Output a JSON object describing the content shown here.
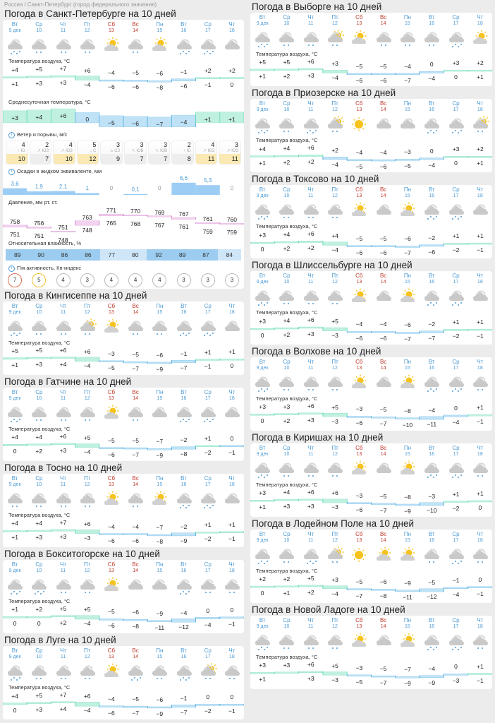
{
  "breadcrumb": "Россия / Санкт-Петербург (город федерального значения)",
  "colors": {
    "warm_fill": "#bff0e0",
    "warm_line": "#5cd6b0",
    "cold_fill": "#bfe2f7",
    "cold_line": "#4aa8dd",
    "pressure_fill": "#f3d3f0",
    "pressure_line": "#c77ac0",
    "precip": "#9ccdf5",
    "humidity_dark": "#9ccdf0",
    "humidity_light": "#cfe6f8",
    "day_blue": "#4d9bd4",
    "weekend_red": "#c0392b"
  },
  "days": [
    {
      "name": "Вт",
      "date": "9 дек",
      "weekend": false
    },
    {
      "name": "Ср",
      "date": "10",
      "weekend": false
    },
    {
      "name": "Чт",
      "date": "11",
      "weekend": false
    },
    {
      "name": "Пт",
      "date": "12",
      "weekend": false
    },
    {
      "name": "Сб",
      "date": "13",
      "weekend": true
    },
    {
      "name": "Вс",
      "date": "14",
      "weekend": true
    },
    {
      "name": "Пн",
      "date": "15",
      "weekend": false
    },
    {
      "name": "Вт",
      "date": "16",
      "weekend": false
    },
    {
      "name": "Ср",
      "date": "17",
      "weekend": false
    },
    {
      "name": "Чт",
      "date": "18",
      "weekend": false
    }
  ],
  "labels": {
    "air_temp": "Температура воздуха, °C",
    "avg_temp": "Среднесуточная температура, °C",
    "wind": "Ветер и порывы, м/с",
    "precip": "Осадки в жидком эквиваленте, мм",
    "pressure": "Давление, мм рт. ст.",
    "humidity": "Относительная влажность, %",
    "geomag": "Г/м активность, Кп-индекс",
    "info_icon": "i"
  },
  "main": {
    "title": "Погода в Санкт-Петербурге на 10 дней",
    "icons": [
      "cloud-rain-heavy",
      "cloud-rain",
      "cloud-rain",
      "cloud-rain",
      "sun-cloud",
      "cloud-rain",
      "sun-cloud",
      "cloud-rain-heavy",
      "cloud-rain-heavy",
      "cloud"
    ],
    "max": [
      "+4",
      "+5",
      "+7",
      "+6",
      "−4",
      "−5",
      "−6",
      "−1",
      "+2",
      "+2"
    ],
    "min": [
      "+1",
      "+3",
      "+3",
      "−4",
      "−6",
      "−6",
      "−8",
      "−6",
      "−1",
      "0"
    ],
    "avg": [
      "+3",
      "+4",
      "+6",
      "0",
      "−5",
      "−6",
      "−7",
      "−4",
      "+1",
      "+1"
    ],
    "wind": [
      {
        "speed": "4",
        "dir": "↑ Ю",
        "gust": "10",
        "hi": true
      },
      {
        "speed": "2",
        "dir": "↗ ЮЗ",
        "gust": "7",
        "hi": false
      },
      {
        "speed": "4",
        "dir": "↗ ЮЗ",
        "gust": "10",
        "hi": true
      },
      {
        "speed": "5",
        "dir": "↓ С",
        "gust": "12",
        "hi": true
      },
      {
        "speed": "3",
        "dir": "↘ СЗ",
        "gust": "9",
        "hi": false
      },
      {
        "speed": "3",
        "dir": "↖ ЮВ",
        "gust": "7",
        "hi": false
      },
      {
        "speed": "3",
        "dir": "↖ ЮВ",
        "gust": "7",
        "hi": false
      },
      {
        "speed": "2",
        "dir": "↑ Ю",
        "gust": "8",
        "hi": false
      },
      {
        "speed": "4",
        "dir": "↗ ЮЗ",
        "gust": "11",
        "hi": true
      },
      {
        "speed": "3",
        "dir": "↗ ЮЗ",
        "gust": "11",
        "hi": true
      }
    ],
    "precip": [
      "3,6",
      "1,9",
      "2,1",
      "1",
      "0",
      "0,1",
      "0",
      "6,6",
      "5,3",
      "0"
    ],
    "pressure_max": [
      "758",
      "756",
      "751",
      "763",
      "771",
      "770",
      "769",
      "767",
      "761",
      "760"
    ],
    "pressure_min": [
      "751",
      "751",
      "748",
      "748",
      "765",
      "768",
      "767",
      "761",
      "759",
      "759"
    ],
    "humidity": [
      "89",
      "90",
      "86",
      "86",
      "77",
      "80",
      "92",
      "89",
      "87",
      "84"
    ],
    "kp": [
      "7",
      "5",
      "4",
      "3",
      "4",
      "4",
      "4",
      "3",
      "3",
      "3"
    ]
  },
  "cities": [
    {
      "id": "vyborg",
      "col": "right",
      "title": "Погода в Выборге на 10 дней",
      "icons": [
        "cloud-rain-heavy",
        "cloud-rain",
        "cloud-rain",
        "sun-cloud-rain",
        "sun-cloud",
        "cloud-rain",
        "cloud-rain",
        "cloud-rain",
        "cloud-rain-heavy",
        "sun-cloud"
      ],
      "max": [
        "+5",
        "+5",
        "+6",
        "+3",
        "−5",
        "−5",
        "−4",
        "0",
        "+3",
        "+2"
      ],
      "min": [
        "+1",
        "+2",
        "+3",
        "−4",
        "−6",
        "−6",
        "−7",
        "−4",
        "0",
        "+1"
      ]
    },
    {
      "id": "priozersk",
      "col": "right",
      "title": "Погода в Приозерске на 10 дней",
      "icons": [
        "cloud-rain-heavy",
        "cloud-rain",
        "cloud-rain-heavy",
        "sun-cloud-rain",
        "sun",
        "cloud",
        "cloud",
        "cloud-rain-heavy",
        "cloud-rain-heavy",
        "sun-cloud-rain"
      ],
      "max": [
        "+4",
        "+4",
        "+6",
        "+2",
        "−4",
        "−4",
        "−3",
        "0",
        "+3",
        "+2"
      ],
      "min": [
        "+1",
        "+2",
        "+2",
        "−4",
        "−5",
        "−6",
        "−5",
        "−4",
        "0",
        "+1"
      ]
    },
    {
      "id": "toksovo",
      "col": "right",
      "title": "Погода в Токсово на 10 дней",
      "icons": [
        "cloud-rain-heavy",
        "cloud-rain",
        "cloud-rain",
        "cloud-rain",
        "sun-cloud",
        "cloud",
        "sun-cloud",
        "cloud-rain-heavy",
        "cloud-rain-heavy",
        "cloud"
      ],
      "max": [
        "+3",
        "+4",
        "+6",
        "+4",
        "−5",
        "−5",
        "−6",
        "−2",
        "+1",
        "+1"
      ],
      "min": [
        "0",
        "+2",
        "+2",
        "−4",
        "−6",
        "−6",
        "−7",
        "−6",
        "−2",
        "−1"
      ]
    },
    {
      "id": "shlisselburg",
      "col": "right",
      "title": "Погода в Шлиссельбурге на 10 дней",
      "icons": [
        "cloud-rain-heavy",
        "cloud-rain",
        "cloud-rain",
        "cloud-rain",
        "sun-cloud",
        "cloud",
        "sun-cloud",
        "cloud-rain-heavy",
        "cloud-rain-heavy",
        "cloud"
      ],
      "max": [
        "+3",
        "+4",
        "+6",
        "+5",
        "−4",
        "−4",
        "−6",
        "−2",
        "+1",
        "+1"
      ],
      "min": [
        "0",
        "+2",
        "+3",
        "−3",
        "−6",
        "−6",
        "−7",
        "−7",
        "−2",
        "−1"
      ]
    },
    {
      "id": "volkhov",
      "col": "right",
      "title": "Погода в Волхове на 10 дней",
      "icons": [
        "cloud-rain-heavy",
        "cloud-rain",
        "cloud-rain",
        "cloud-rain",
        "sun-cloud",
        "cloud",
        "sun-cloud",
        "cloud-rain-heavy",
        "cloud-rain-heavy",
        "cloud-rain"
      ],
      "max": [
        "+3",
        "+3",
        "+6",
        "+5",
        "−3",
        "−5",
        "−8",
        "−4",
        "0",
        "+1"
      ],
      "min": [
        "0",
        "+2",
        "+3",
        "−3",
        "−6",
        "−7",
        "−10",
        "−11",
        "−4",
        "−1"
      ]
    },
    {
      "id": "kirishi",
      "col": "right",
      "title": "Погода в Киришах на 10 дней",
      "icons": [
        "cloud-rain-heavy",
        "cloud-rain",
        "cloud-rain",
        "cloud-rain",
        "sun-cloud",
        "cloud",
        "sun-cloud",
        "cloud-rain-heavy",
        "cloud-rain-heavy",
        "cloud-rain"
      ],
      "max": [
        "+3",
        "+4",
        "+6",
        "+6",
        "−3",
        "−5",
        "−8",
        "−3",
        "+1",
        "+1"
      ],
      "min": [
        "+1",
        "+3",
        "+3",
        "−3",
        "−6",
        "−7",
        "−9",
        "−10",
        "−2",
        "0"
      ]
    },
    {
      "id": "lodeynoe",
      "col": "right",
      "title": "Погода в Лодейном Поле на 10 дней",
      "icons": [
        "cloud-rain-heavy",
        "cloud-rain",
        "cloud-rain-heavy",
        "sun-cloud-rain",
        "sun",
        "sun-cloud",
        "sun-cloud",
        "cloud-rain",
        "cloud-rain-heavy",
        "cloud-rain"
      ],
      "max": [
        "+2",
        "+2",
        "+5",
        "+3",
        "−5",
        "−6",
        "−9",
        "−5",
        "−1",
        "0"
      ],
      "min": [
        "0",
        "+1",
        "+2",
        "−4",
        "−7",
        "−8",
        "−11",
        "−12",
        "−4",
        "−1"
      ]
    },
    {
      "id": "novaya-ladoga",
      "col": "right",
      "title": "Погода в Новой Ладоге на 10 дней",
      "icons": [
        "cloud-rain-heavy",
        "cloud-rain",
        "cloud-rain",
        "cloud-rain",
        "sun-cloud",
        "cloud",
        "sun-cloud",
        "cloud-rain-heavy",
        "cloud-rain-heavy",
        "cloud-rain"
      ],
      "max": [
        "+3",
        "+3",
        "+6",
        "+5",
        "−3",
        "−5",
        "−7",
        "−4",
        "0",
        "+1"
      ],
      "min": [
        "+1",
        "",
        "+3",
        "−3",
        "−5",
        "−7",
        "−9",
        "−9",
        "−3",
        "−1"
      ]
    },
    {
      "id": "kingisepp",
      "col": "left",
      "title": "Погода в Кингисеппе на 10 дней",
      "icons": [
        "cloud-rain-heavy",
        "cloud-rain",
        "cloud-rain",
        "sun-cloud-rain",
        "sun-cloud",
        "cloud-rain",
        "cloud-rain",
        "cloud-rain-heavy",
        "cloud-rain-heavy",
        "cloud"
      ],
      "max": [
        "+5",
        "+5",
        "+6",
        "+6",
        "−3",
        "−5",
        "−6",
        "−1",
        "+1",
        "+1"
      ],
      "min": [
        "+1",
        "+3",
        "+4",
        "−4",
        "−5",
        "−7",
        "−9",
        "−7",
        "−1",
        "0"
      ]
    },
    {
      "id": "gatchina",
      "col": "left",
      "title": "Погода в Гатчине на 10 дней",
      "icons": [
        "cloud-rain-heavy",
        "cloud-rain",
        "cloud-rain",
        "cloud-rain",
        "sun-cloud",
        "cloud-rain",
        "cloud",
        "cloud-rain-heavy",
        "cloud-rain-heavy",
        "cloud"
      ],
      "max": [
        "+4",
        "+4",
        "+6",
        "+5",
        "−5",
        "−5",
        "−7",
        "−2",
        "+1",
        "0"
      ],
      "min": [
        "0",
        "+2",
        "+3",
        "−4",
        "−6",
        "−7",
        "−9",
        "−8",
        "−2",
        "−1"
      ]
    },
    {
      "id": "tosno",
      "col": "left",
      "title": "Погода в Тосно на 10 дней",
      "icons": [
        "cloud-rain",
        "cloud-rain",
        "cloud-rain",
        "cloud-rain",
        "sun-cloud",
        "cloud-rain",
        "sun-cloud",
        "cloud-rain-heavy",
        "cloud-rain-heavy",
        "cloud"
      ],
      "max": [
        "+4",
        "+4",
        "+7",
        "+6",
        "−4",
        "−4",
        "−7",
        "−2",
        "+1",
        "+1"
      ],
      "min": [
        "+1",
        "+3",
        "+3",
        "−3",
        "−6",
        "−6",
        "−8",
        "−9",
        "−2",
        "−1"
      ]
    },
    {
      "id": "boksitogorsk",
      "col": "left",
      "title": "Погода в Бокситогорске на 10 дней",
      "icons": [
        "cloud-rain-heavy",
        "cloud-rain-heavy",
        "cloud-rain",
        "cloud-rain",
        "sun-cloud",
        "cloud",
        "cloud",
        "cloud-rain-heavy",
        "cloud-rain",
        "cloud-rain"
      ],
      "max": [
        "+1",
        "+2",
        "+5",
        "+5",
        "−5",
        "−6",
        "−9",
        "−4",
        "0",
        "0"
      ],
      "min": [
        "0",
        "0",
        "+2",
        "−4",
        "−6",
        "−8",
        "−11",
        "−12",
        "−4",
        "−1"
      ]
    },
    {
      "id": "luga",
      "col": "left",
      "title": "Погода в Луге на 10 дней",
      "icons": [
        "cloud-rain-heavy",
        "cloud-rain",
        "cloud-rain",
        "cloud-rain",
        "sun-cloud",
        "cloud-rain-heavy",
        "cloud-rain",
        "cloud-rain-heavy",
        "sun-cloud-rain",
        "cloud-rain"
      ],
      "max": [
        "+4",
        "+5",
        "+7",
        "+6",
        "−4",
        "−5",
        "−6",
        "−1",
        "0",
        "0"
      ],
      "min": [
        "0",
        "+3",
        "+4",
        "−4",
        "−6",
        "−7",
        "−9",
        "−7",
        "−2",
        "−1"
      ]
    }
  ]
}
